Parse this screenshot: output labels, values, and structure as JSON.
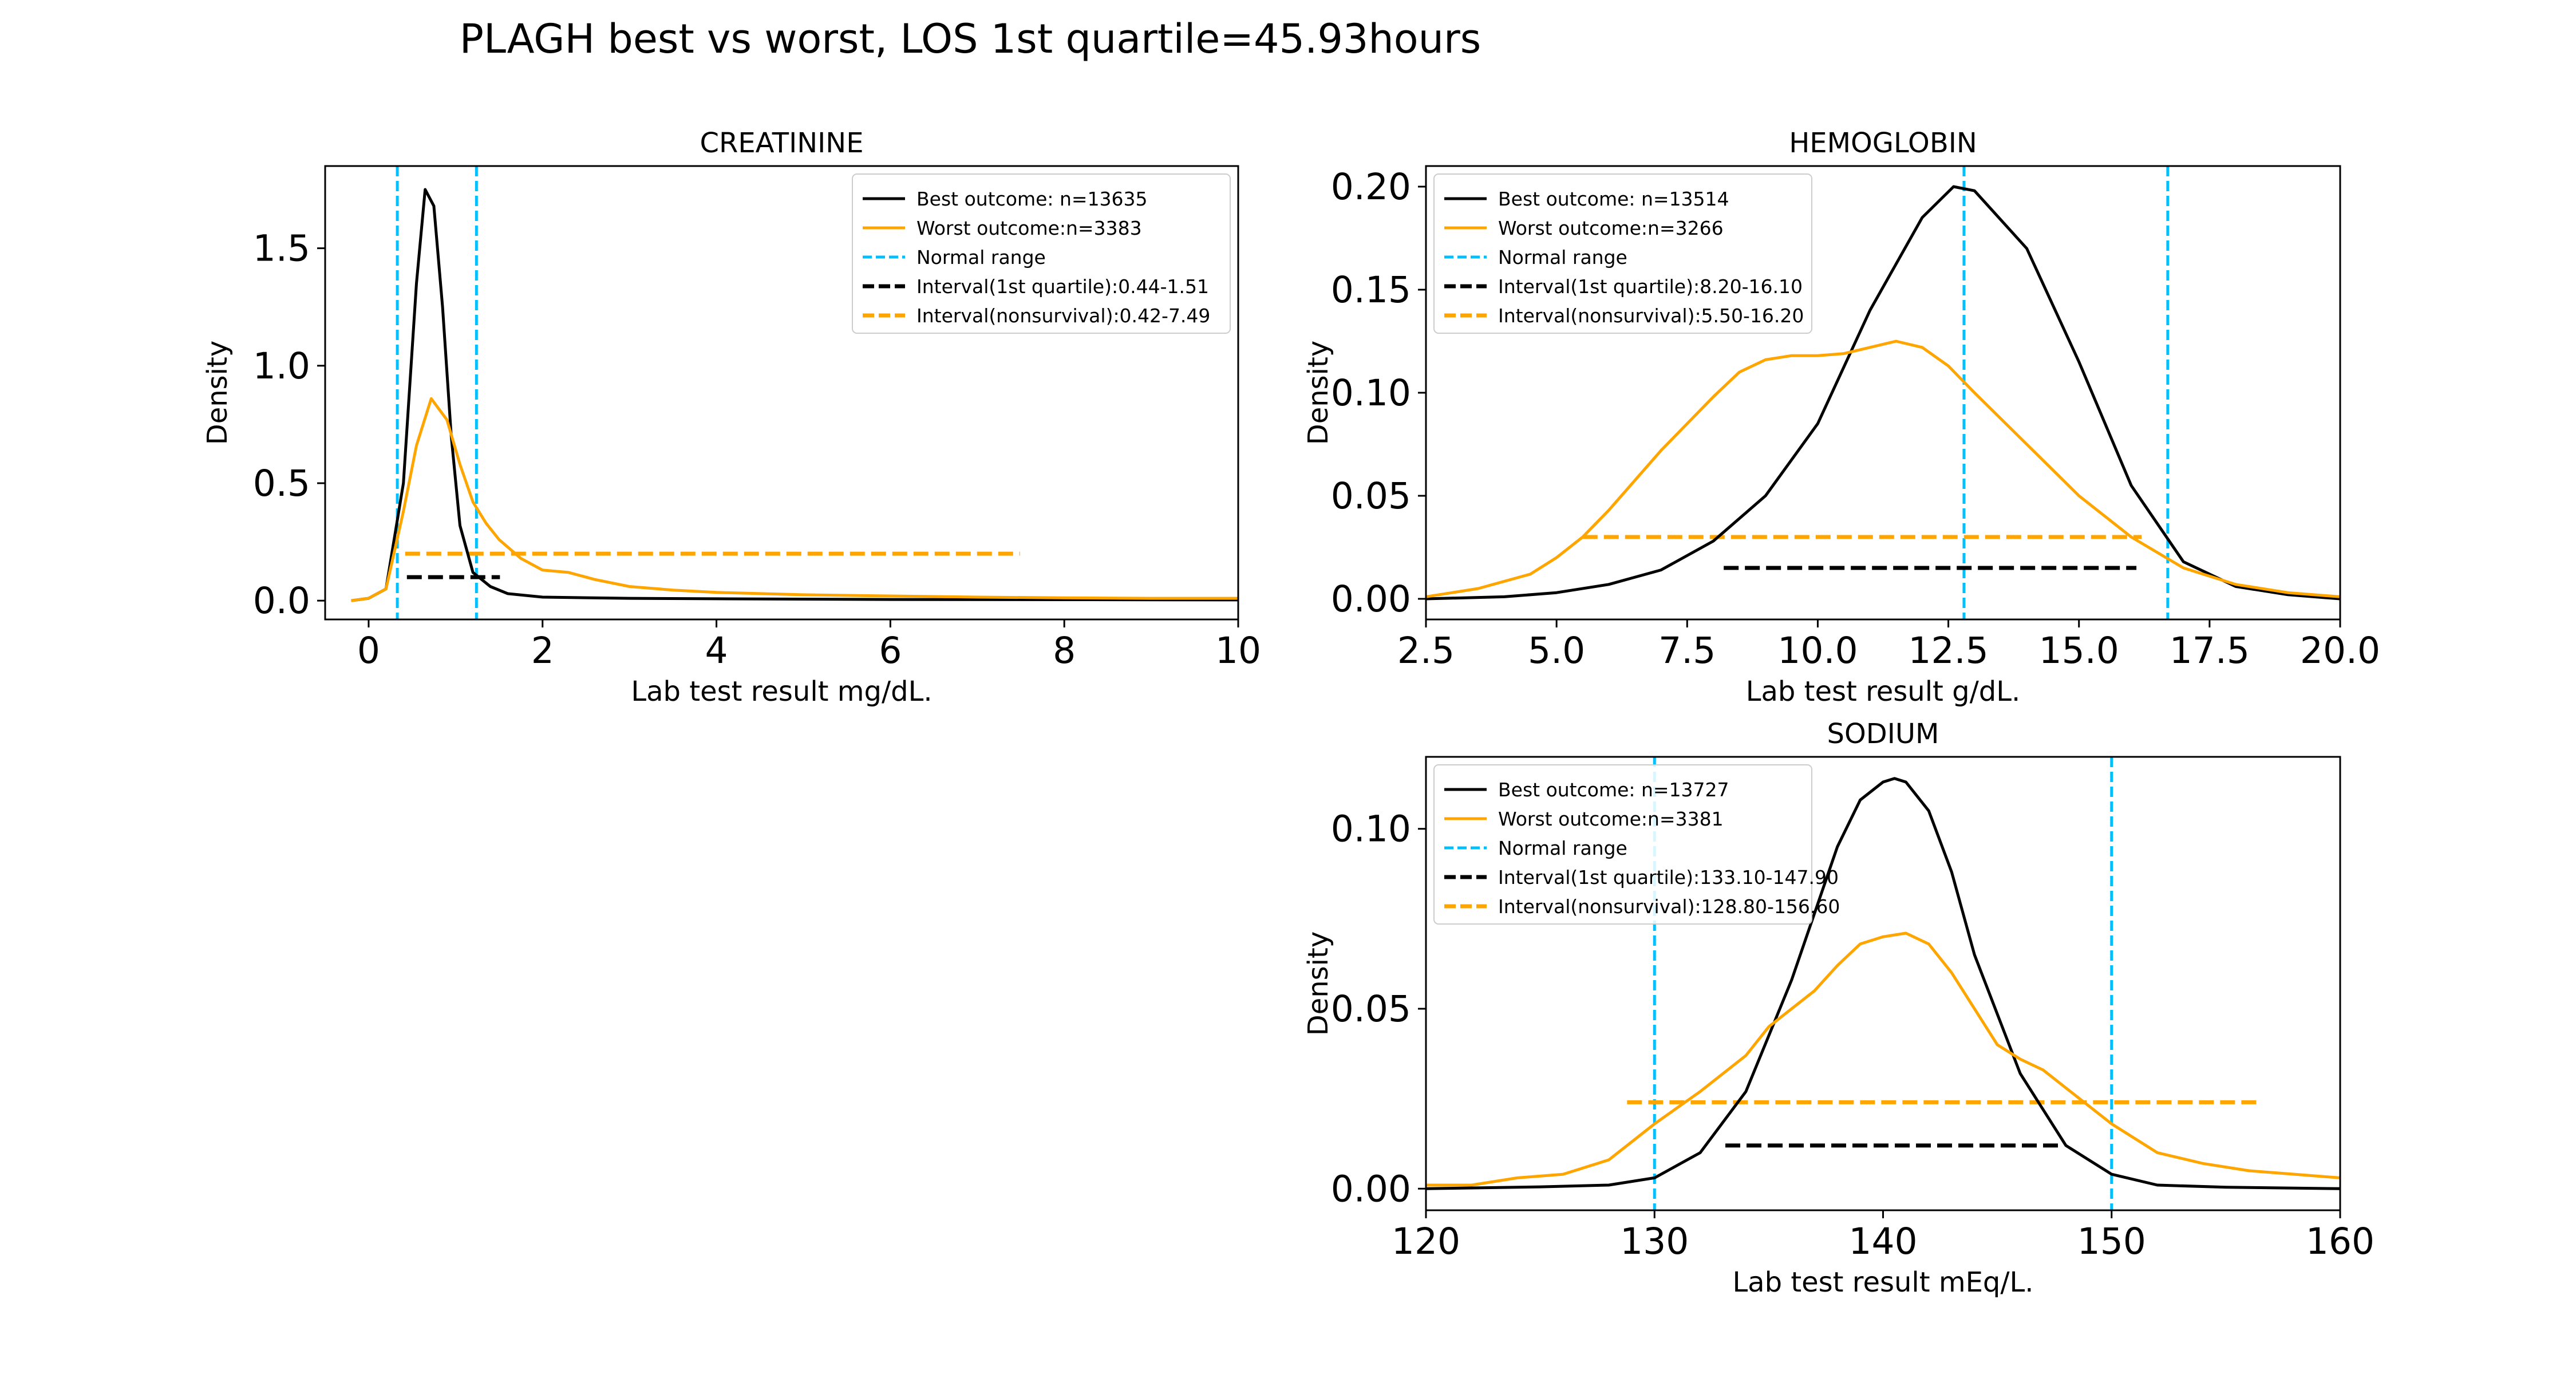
{
  "figure": {
    "suptitle": "PLAGH best vs worst, LOS 1st quartile=45.93hours"
  },
  "colors": {
    "best": "#000000",
    "worst": "#FFA500",
    "normal": "#00BFFF"
  },
  "chart_data": [
    {
      "type": "line",
      "title": "CREATININE",
      "xlabel": "Lab test result mg/dL.",
      "ylabel": "Density",
      "xlim": [
        -0.5,
        10
      ],
      "ylim": [
        -0.08,
        1.85
      ],
      "xticks": [
        0,
        2,
        4,
        6,
        8,
        10
      ],
      "yticks": [
        0.0,
        0.5,
        1.0,
        1.5
      ],
      "xtick_labels": [
        "0",
        "2",
        "4",
        "6",
        "8",
        "10"
      ],
      "ytick_labels": [
        "0.0",
        "0.5",
        "1.0",
        "1.5"
      ],
      "legend_position": "top-right",
      "legend": [
        "Best outcome: n=13635",
        "Worst outcome:n=3383",
        "Normal range",
        "Interval(1st quartile):0.44-1.51",
        "Interval(nonsurvival):0.42-7.49"
      ],
      "series": [
        {
          "x": [
            -0.2,
            0.0,
            0.2,
            0.4,
            0.55,
            0.65,
            0.75,
            0.85,
            0.95,
            1.05,
            1.2,
            1.4,
            1.6,
            2.0,
            3.0,
            4.0,
            6.0,
            8.0,
            10.0
          ],
          "y": [
            0.0,
            0.01,
            0.05,
            0.5,
            1.35,
            1.75,
            1.68,
            1.25,
            0.7,
            0.32,
            0.12,
            0.06,
            0.03,
            0.015,
            0.01,
            0.008,
            0.005,
            0.004,
            0.003
          ]
        },
        {
          "x": [
            -0.2,
            0.0,
            0.2,
            0.4,
            0.55,
            0.72,
            0.9,
            1.05,
            1.2,
            1.35,
            1.5,
            1.75,
            2.0,
            2.3,
            2.6,
            3.0,
            3.5,
            4.0,
            5.0,
            6.0,
            7.0,
            8.0,
            9.0,
            10.0
          ],
          "y": [
            0.0,
            0.01,
            0.05,
            0.38,
            0.66,
            0.86,
            0.77,
            0.58,
            0.42,
            0.33,
            0.26,
            0.18,
            0.13,
            0.12,
            0.09,
            0.06,
            0.045,
            0.035,
            0.025,
            0.02,
            0.015,
            0.012,
            0.01,
            0.01
          ]
        }
      ],
      "normal_range": [
        0.33,
        1.24
      ],
      "intervals": [
        {
          "x": [
            0.44,
            1.51
          ],
          "y": 0.1
        },
        {
          "x": [
            0.42,
            7.49
          ],
          "y": 0.2
        }
      ]
    },
    {
      "type": "line",
      "title": "HEMOGLOBIN",
      "xlabel": "Lab test result g/dL.",
      "ylabel": "Density",
      "xlim": [
        2.5,
        20
      ],
      "ylim": [
        -0.01,
        0.21
      ],
      "xticks": [
        2.5,
        5.0,
        7.5,
        10.0,
        12.5,
        15.0,
        17.5,
        20.0
      ],
      "yticks": [
        0.0,
        0.05,
        0.1,
        0.15,
        0.2
      ],
      "xtick_labels": [
        "2.5",
        "5.0",
        "7.5",
        "10.0",
        "12.5",
        "15.0",
        "17.5",
        "20.0"
      ],
      "ytick_labels": [
        "0.00",
        "0.05",
        "0.10",
        "0.15",
        "0.20"
      ],
      "legend_position": "top-left",
      "legend": [
        "Best outcome: n=13514",
        "Worst outcome:n=3266",
        "Normal range",
        "Interval(1st quartile):8.20-16.10",
        "Interval(nonsurvival):5.50-16.20"
      ],
      "series": [
        {
          "x": [
            2.5,
            4.0,
            5.0,
            6.0,
            7.0,
            8.0,
            9.0,
            10.0,
            11.0,
            12.0,
            12.6,
            13.0,
            14.0,
            15.0,
            16.0,
            17.0,
            18.0,
            19.0,
            20.0
          ],
          "y": [
            0.0,
            0.001,
            0.003,
            0.007,
            0.014,
            0.028,
            0.05,
            0.085,
            0.14,
            0.185,
            0.2,
            0.198,
            0.17,
            0.115,
            0.055,
            0.018,
            0.006,
            0.002,
            0.0
          ]
        },
        {
          "x": [
            2.5,
            3.5,
            4.5,
            5.0,
            5.5,
            6.0,
            7.0,
            8.0,
            8.5,
            9.0,
            9.5,
            10.0,
            10.5,
            11.0,
            11.5,
            12.0,
            12.5,
            13.0,
            14.0,
            15.0,
            16.0,
            17.0,
            18.0,
            19.0,
            20.0
          ],
          "y": [
            0.001,
            0.005,
            0.012,
            0.02,
            0.03,
            0.043,
            0.072,
            0.098,
            0.11,
            0.116,
            0.118,
            0.118,
            0.119,
            0.122,
            0.125,
            0.122,
            0.113,
            0.1,
            0.075,
            0.05,
            0.03,
            0.015,
            0.007,
            0.003,
            0.001
          ]
        }
      ],
      "normal_range": [
        12.8,
        16.7
      ],
      "intervals": [
        {
          "x": [
            8.2,
            16.1
          ],
          "y": 0.015
        },
        {
          "x": [
            5.5,
            16.2
          ],
          "y": 0.03
        }
      ]
    },
    {
      "type": "line",
      "title": "SODIUM",
      "xlabel": "Lab test result mEq/L.",
      "ylabel": "Density",
      "xlim": [
        120,
        160
      ],
      "ylim": [
        -0.006,
        0.12
      ],
      "xticks": [
        120,
        130,
        140,
        150,
        160
      ],
      "yticks": [
        0.0,
        0.05,
        0.1
      ],
      "xtick_labels": [
        "120",
        "130",
        "140",
        "150",
        "160"
      ],
      "ytick_labels": [
        "0.00",
        "0.05",
        "0.10"
      ],
      "legend_position": "top-left",
      "legend": [
        "Best outcome: n=13727",
        "Worst outcome:n=3381",
        "Normal range",
        "Interval(1st quartile):133.10-147.90",
        "Interval(nonsurvival):128.80-156.60"
      ],
      "series": [
        {
          "x": [
            120,
            125,
            128,
            130,
            132,
            134,
            136,
            138,
            139,
            140,
            140.5,
            141,
            142,
            143,
            144,
            146,
            148,
            150,
            152,
            155,
            160
          ],
          "y": [
            0.0,
            0.0005,
            0.001,
            0.003,
            0.01,
            0.027,
            0.058,
            0.095,
            0.108,
            0.113,
            0.114,
            0.113,
            0.105,
            0.088,
            0.065,
            0.032,
            0.012,
            0.004,
            0.001,
            0.0004,
            0.0
          ]
        },
        {
          "x": [
            120,
            122,
            124,
            126,
            128,
            130,
            132,
            134,
            135,
            136,
            137,
            138,
            139,
            140,
            141,
            142,
            143,
            144,
            145,
            146,
            147,
            148,
            150,
            152,
            154,
            156,
            158,
            160
          ],
          "y": [
            0.001,
            0.001,
            0.003,
            0.004,
            0.008,
            0.018,
            0.027,
            0.037,
            0.045,
            0.05,
            0.055,
            0.062,
            0.068,
            0.07,
            0.071,
            0.068,
            0.06,
            0.05,
            0.04,
            0.036,
            0.033,
            0.028,
            0.018,
            0.01,
            0.007,
            0.005,
            0.004,
            0.003
          ]
        }
      ],
      "normal_range": [
        130,
        150
      ],
      "intervals": [
        {
          "x": [
            133.1,
            147.9
          ],
          "y": 0.012
        },
        {
          "x": [
            128.8,
            156.6
          ],
          "y": 0.024
        }
      ]
    }
  ]
}
